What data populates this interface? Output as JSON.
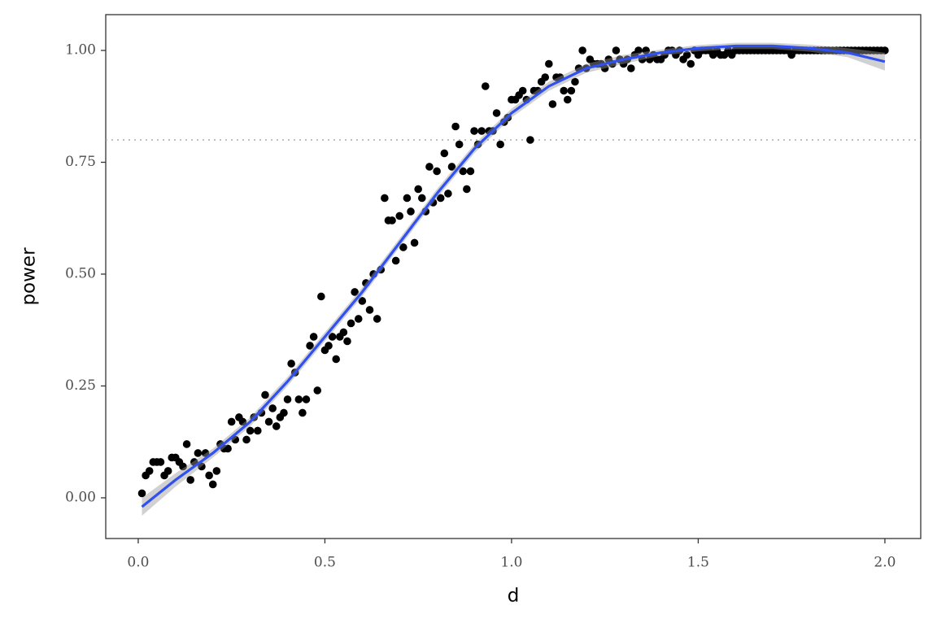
{
  "chart_data": {
    "type": "scatter",
    "x_label": "d",
    "y_label": "power",
    "xlim": [
      -0.087,
      2.096
    ],
    "ylim": [
      -0.091,
      1.08
    ],
    "xticks": [
      {
        "value": 0,
        "label": "0.0"
      },
      0.5,
      {
        "value": 1,
        "label": "1.0"
      },
      1.5,
      {
        "value": 2,
        "label": "2.0"
      }
    ],
    "yticks": [
      {
        "value": 0,
        "label": "0.00"
      },
      {
        "value": 0.25,
        "label": "0.25"
      },
      {
        "value": 0.5,
        "label": "0.50"
      },
      {
        "value": 0.75,
        "label": "0.75"
      },
      {
        "value": 1,
        "label": "1.00"
      }
    ],
    "hline": 0.8,
    "grid": false,
    "series": [
      {
        "type": "scatter",
        "color": "#000000",
        "x": [
          0.01,
          0.02,
          0.03,
          0.04,
          0.05,
          0.06,
          0.07,
          0.08,
          0.09,
          0.1,
          0.11,
          0.12,
          0.13,
          0.14,
          0.15,
          0.16,
          0.17,
          0.18,
          0.19,
          0.2,
          0.21,
          0.22,
          0.23,
          0.24,
          0.25,
          0.26,
          0.27,
          0.28,
          0.29,
          0.3,
          0.31,
          0.32,
          0.33,
          0.34,
          0.35,
          0.36,
          0.37,
          0.38,
          0.39,
          0.4,
          0.41,
          0.42,
          0.43,
          0.44,
          0.45,
          0.46,
          0.47,
          0.48,
          0.49,
          0.5,
          0.51,
          0.52,
          0.53,
          0.54,
          0.55,
          0.56,
          0.57,
          0.58,
          0.59,
          0.6,
          0.61,
          0.62,
          0.63,
          0.64,
          0.65,
          0.66,
          0.67,
          0.68,
          0.69,
          0.7,
          0.71,
          0.72,
          0.73,
          0.74,
          0.75,
          0.76,
          0.77,
          0.78,
          0.79,
          0.8,
          0.81,
          0.82,
          0.83,
          0.84,
          0.85,
          0.86,
          0.87,
          0.88,
          0.89,
          0.9,
          0.91,
          0.92,
          0.93,
          0.94,
          0.95,
          0.96,
          0.97,
          0.98,
          0.99,
          1.0,
          1.01,
          1.02,
          1.03,
          1.04,
          1.05,
          1.06,
          1.07,
          1.08,
          1.09,
          1.1,
          1.11,
          1.12,
          1.13,
          1.14,
          1.15,
          1.16,
          1.17,
          1.18,
          1.19,
          1.2,
          1.21,
          1.22,
          1.23,
          1.24,
          1.25,
          1.26,
          1.27,
          1.28,
          1.29,
          1.3,
          1.31,
          1.32,
          1.33,
          1.34,
          1.35,
          1.36,
          1.37,
          1.38,
          1.39,
          1.4,
          1.41,
          1.42,
          1.43,
          1.44,
          1.45,
          1.46,
          1.47,
          1.48,
          1.49,
          1.5,
          1.51,
          1.52,
          1.53,
          1.54,
          1.55,
          1.56,
          1.57,
          1.58,
          1.59,
          1.6,
          1.61,
          1.62,
          1.63,
          1.64,
          1.65,
          1.66,
          1.67,
          1.68,
          1.69,
          1.7,
          1.71,
          1.72,
          1.73,
          1.74,
          1.75,
          1.76,
          1.77,
          1.78,
          1.79,
          1.8,
          1.81,
          1.82,
          1.83,
          1.84,
          1.85,
          1.86,
          1.87,
          1.88,
          1.89,
          1.9,
          1.91,
          1.92,
          1.93,
          1.94,
          1.95,
          1.96,
          1.97,
          1.98,
          1.99,
          2.0
        ],
        "values": [
          0.01,
          0.05,
          0.06,
          0.08,
          0.08,
          0.08,
          0.05,
          0.06,
          0.09,
          0.09,
          0.08,
          0.07,
          0.12,
          0.04,
          0.08,
          0.1,
          0.07,
          0.1,
          0.05,
          0.03,
          0.06,
          0.12,
          0.11,
          0.11,
          0.17,
          0.13,
          0.18,
          0.17,
          0.13,
          0.15,
          0.18,
          0.15,
          0.19,
          0.23,
          0.17,
          0.2,
          0.16,
          0.18,
          0.19,
          0.22,
          0.3,
          0.28,
          0.22,
          0.19,
          0.22,
          0.34,
          0.36,
          0.24,
          0.45,
          0.33,
          0.34,
          0.36,
          0.31,
          0.36,
          0.37,
          0.35,
          0.39,
          0.46,
          0.4,
          0.44,
          0.48,
          0.42,
          0.5,
          0.4,
          0.51,
          0.67,
          0.62,
          0.62,
          0.53,
          0.63,
          0.56,
          0.67,
          0.64,
          0.57,
          0.69,
          0.67,
          0.64,
          0.74,
          0.66,
          0.73,
          0.67,
          0.77,
          0.68,
          0.74,
          0.83,
          0.79,
          0.73,
          0.69,
          0.73,
          0.82,
          0.79,
          0.82,
          0.92,
          0.82,
          0.82,
          0.86,
          0.79,
          0.84,
          0.85,
          0.89,
          0.89,
          0.9,
          0.91,
          0.89,
          0.8,
          0.91,
          0.91,
          0.93,
          0.94,
          0.97,
          0.88,
          0.94,
          0.94,
          0.91,
          0.89,
          0.91,
          0.93,
          0.96,
          1,
          0.96,
          0.98,
          0.97,
          0.97,
          0.97,
          0.96,
          0.98,
          0.97,
          1,
          0.98,
          0.97,
          0.98,
          0.96,
          0.99,
          1,
          0.98,
          1,
          0.98,
          0.99,
          0.98,
          0.98,
          0.99,
          1,
          1,
          0.99,
          1,
          0.98,
          0.99,
          0.97,
          1,
          0.99,
          1,
          1,
          1,
          0.99,
          1,
          0.99,
          0.99,
          1,
          0.99,
          1,
          1,
          1,
          1,
          1,
          1,
          1,
          1,
          1,
          1,
          1,
          1,
          1,
          1,
          1,
          0.99,
          1,
          1,
          1,
          1,
          1,
          1,
          1,
          1,
          1,
          1,
          1,
          1,
          1,
          1,
          1,
          1,
          1,
          1,
          1,
          1,
          1,
          1,
          1,
          1,
          1
        ]
      },
      {
        "type": "smooth",
        "color": "#3050f0",
        "band_color": "#999999",
        "x": [
          0.01,
          0.1,
          0.2,
          0.3,
          0.4,
          0.5,
          0.6,
          0.7,
          0.8,
          0.9,
          1.0,
          1.1,
          1.2,
          1.3,
          1.4,
          1.5,
          1.6,
          1.7,
          1.8,
          1.9,
          2.0
        ],
        "values": [
          -0.02,
          0.04,
          0.1,
          0.17,
          0.26,
          0.36,
          0.46,
          0.57,
          0.68,
          0.78,
          0.86,
          0.92,
          0.96,
          0.98,
          0.995,
          1.005,
          1.01,
          1.01,
          1.005,
          0.995,
          0.975
        ],
        "lower": [
          -0.04,
          0.025,
          0.09,
          0.16,
          0.25,
          0.35,
          0.45,
          0.56,
          0.67,
          0.77,
          0.85,
          0.91,
          0.95,
          0.97,
          0.988,
          0.998,
          1.003,
          1.003,
          0.997,
          0.985,
          0.955
        ],
        "upper": [
          0.0,
          0.055,
          0.11,
          0.18,
          0.27,
          0.37,
          0.47,
          0.58,
          0.69,
          0.79,
          0.87,
          0.93,
          0.97,
          0.99,
          1.002,
          1.012,
          1.017,
          1.017,
          1.013,
          1.005,
          0.995
        ]
      }
    ]
  }
}
